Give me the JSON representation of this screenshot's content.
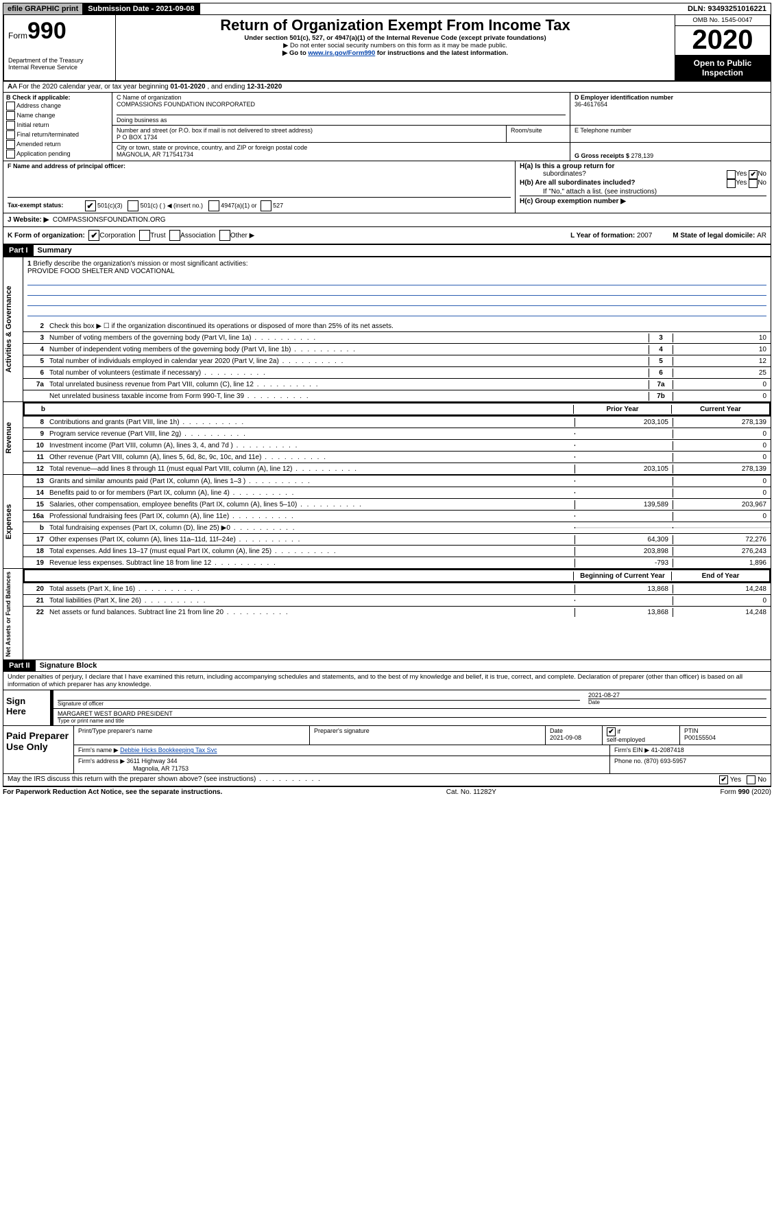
{
  "topbar": {
    "efile": "efile GRAPHIC print",
    "subdate": "Submission Date - 2021-09-08",
    "dln": "DLN: 93493251016221"
  },
  "header": {
    "form_label": "Form",
    "form_num": "990",
    "dept": "Department of the Treasury",
    "irs": "Internal Revenue Service",
    "title": "Return of Organization Exempt From Income Tax",
    "sub1": "Under section 501(c), 527, or 4947(a)(1) of the Internal Revenue Code (except private foundations)",
    "sub2": "▶ Do not enter social security numbers on this form as it may be made public.",
    "sub3_pre": "▶ Go to ",
    "sub3_link": "www.irs.gov/Form990",
    "sub3_post": " for instructions and the latest information.",
    "omb": "OMB No. 1545-0047",
    "year": "2020",
    "open": "Open to Public Inspection"
  },
  "row_a": {
    "text_pre": "A For the 2020 calendar year, or tax year beginning ",
    "begin": "01-01-2020",
    "mid": " , and ending ",
    "end": "12-31-2020"
  },
  "col_b": {
    "label": "B Check if applicable:",
    "opts": [
      "Address change",
      "Name change",
      "Initial return",
      "Final return/terminated",
      "Amended return",
      "Application pending"
    ]
  },
  "name": {
    "c_label": "C Name of organization",
    "org": "COMPASSIONS FOUNDATION INCORPORATED",
    "dba_label": "Doing business as",
    "addr_label": "Number and street (or P.O. box if mail is not delivered to street address)",
    "addr": "P O BOX 1734",
    "room_label": "Room/suite",
    "city_label": "City or town, state or province, country, and ZIP or foreign postal code",
    "city": "MAGNOLIA, AR  717541734",
    "d_label": "D Employer identification number",
    "ein": "36-4617654",
    "e_label": "E Telephone number",
    "g_label": "G Gross receipts $ ",
    "g_val": "278,139"
  },
  "fh": {
    "f_label": "F Name and address of principal officer:",
    "ha": "H(a)  Is this a group return for",
    "ha2": "subordinates?",
    "hb": "H(b)  Are all subordinates included?",
    "hb_note": "If \"No,\" attach a list. (see instructions)",
    "hc": "H(c)  Group exemption number ▶",
    "yes": "Yes",
    "no": "No"
  },
  "row_i": {
    "label": "Tax-exempt status:",
    "o1": "501(c)(3)",
    "o2": "501(c) (   ) ◀ (insert no.)",
    "o3": "4947(a)(1) or",
    "o4": "527"
  },
  "row_j": {
    "label": "J   Website: ▶",
    "val": "COMPASSIONSFOUNDATION.ORG"
  },
  "row_k": {
    "label": "K Form of organization:",
    "opts": [
      "Corporation",
      "Trust",
      "Association",
      "Other ▶"
    ],
    "l": "L Year of formation: ",
    "l_val": "2007",
    "m": "M State of legal domicile: ",
    "m_val": "AR"
  },
  "part1": {
    "header": "Part I",
    "title": "Summary",
    "q1": "Briefly describe the organization's mission or most significant activities:",
    "mission": "PROVIDE FOOD SHELTER AND VOCATIONAL",
    "q2": "Check this box ▶ ☐  if the organization discontinued its operations or disposed of more than 25% of its net assets.",
    "lines_single": [
      {
        "n": "3",
        "d": "Number of voting members of the governing body (Part VI, line 1a)",
        "box": "3",
        "v": "10"
      },
      {
        "n": "4",
        "d": "Number of independent voting members of the governing body (Part VI, line 1b)",
        "box": "4",
        "v": "10"
      },
      {
        "n": "5",
        "d": "Total number of individuals employed in calendar year 2020 (Part V, line 2a)",
        "box": "5",
        "v": "12"
      },
      {
        "n": "6",
        "d": "Total number of volunteers (estimate if necessary)",
        "box": "6",
        "v": "25"
      },
      {
        "n": "7a",
        "d": "Total unrelated business revenue from Part VIII, column (C), line 12",
        "box": "7a",
        "v": "0"
      },
      {
        "n": "",
        "d": "Net unrelated business taxable income from Form 990-T, line 39",
        "box": "7b",
        "v": "0"
      }
    ],
    "col_prior": "Prior Year",
    "col_current": "Current Year",
    "rev": [
      {
        "n": "8",
        "d": "Contributions and grants (Part VIII, line 1h)",
        "p": "203,105",
        "c": "278,139"
      },
      {
        "n": "9",
        "d": "Program service revenue (Part VIII, line 2g)",
        "p": "",
        "c": "0"
      },
      {
        "n": "10",
        "d": "Investment income (Part VIII, column (A), lines 3, 4, and 7d )",
        "p": "",
        "c": "0"
      },
      {
        "n": "11",
        "d": "Other revenue (Part VIII, column (A), lines 5, 6d, 8c, 9c, 10c, and 11e)",
        "p": "",
        "c": "0"
      },
      {
        "n": "12",
        "d": "Total revenue—add lines 8 through 11 (must equal Part VIII, column (A), line 12)",
        "p": "203,105",
        "c": "278,139"
      }
    ],
    "exp": [
      {
        "n": "13",
        "d": "Grants and similar amounts paid (Part IX, column (A), lines 1–3 )",
        "p": "",
        "c": "0"
      },
      {
        "n": "14",
        "d": "Benefits paid to or for members (Part IX, column (A), line 4)",
        "p": "",
        "c": "0"
      },
      {
        "n": "15",
        "d": "Salaries, other compensation, employee benefits (Part IX, column (A), lines 5–10)",
        "p": "139,589",
        "c": "203,967"
      },
      {
        "n": "16a",
        "d": "Professional fundraising fees (Part IX, column (A), line 11e)",
        "p": "",
        "c": "0"
      },
      {
        "n": "b",
        "d": "Total fundraising expenses (Part IX, column (D), line 25) ▶0",
        "p": "GRAY",
        "c": "GRAY"
      },
      {
        "n": "17",
        "d": "Other expenses (Part IX, column (A), lines 11a–11d, 11f–24e)",
        "p": "64,309",
        "c": "72,276"
      },
      {
        "n": "18",
        "d": "Total expenses. Add lines 13–17 (must equal Part IX, column (A), line 25)",
        "p": "203,898",
        "c": "276,243"
      },
      {
        "n": "19",
        "d": "Revenue less expenses. Subtract line 18 from line 12",
        "p": "-793",
        "c": "1,896"
      }
    ],
    "col_begin": "Beginning of Current Year",
    "col_end": "End of Year",
    "net": [
      {
        "n": "20",
        "d": "Total assets (Part X, line 16)",
        "p": "13,868",
        "c": "14,248"
      },
      {
        "n": "21",
        "d": "Total liabilities (Part X, line 26)",
        "p": "",
        "c": "0"
      },
      {
        "n": "22",
        "d": "Net assets or fund balances. Subtract line 21 from line 20",
        "p": "13,868",
        "c": "14,248"
      }
    ],
    "vtab_ag": "Activities & Governance",
    "vtab_rev": "Revenue",
    "vtab_exp": "Expenses",
    "vtab_net": "Net Assets or Fund Balances"
  },
  "part2": {
    "header": "Part II",
    "title": "Signature Block",
    "penalty": "Under penalties of perjury, I declare that I have examined this return, including accompanying schedules and statements, and to the best of my knowledge and belief, it is true, correct, and complete. Declaration of preparer (other than officer) is based on all information of which preparer has any knowledge.",
    "sign": "Sign Here",
    "sig_officer": "Signature of officer",
    "date": "Date",
    "sig_date": "2021-08-27",
    "name_title": "MARGARET WEST  BOARD PRESIDENT",
    "type_label": "Type or print name and title",
    "paid": "Paid Preparer Use Only",
    "pt_name_label": "Print/Type preparer's name",
    "pt_sig_label": "Preparer's signature",
    "pt_date_label": "Date",
    "pt_date": "2021-09-08",
    "check_if": "Check ☑ if self-employed",
    "ptin_label": "PTIN",
    "ptin": "P00155504",
    "firm_name_label": "Firm's name    ▶",
    "firm_name": "Debbie Hicks Bookkeeping Tax Svc",
    "firm_ein_label": "Firm's EIN ▶",
    "firm_ein": "41-2087418",
    "firm_addr_label": "Firm's address ▶",
    "firm_addr1": "3611 Highway 344",
    "firm_addr2": "Magnolia, AR  71753",
    "phone_label": "Phone no. ",
    "phone": "(870) 693-5957",
    "discuss": "May the IRS discuss this return with the preparer shown above? (see instructions)"
  },
  "footer": {
    "left": "For Paperwork Reduction Act Notice, see the separate instructions.",
    "mid": "Cat. No. 11282Y",
    "right": "Form 990 (2020)"
  }
}
